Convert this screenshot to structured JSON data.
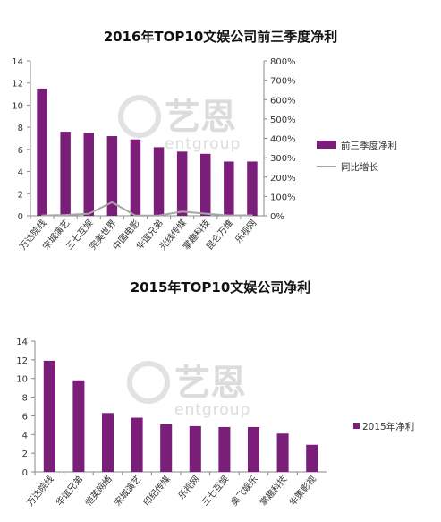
{
  "watermark": {
    "cn": "艺恩",
    "en": "entgroup"
  },
  "colors": {
    "bar": "#7B1E7A",
    "line": "#A6A6A6",
    "axis": "#888888"
  },
  "chart_data": [
    {
      "type": "bar",
      "title": "2016年TOP10文娱公司前三季度净利",
      "categories": [
        "万达院线",
        "宋城演艺",
        "三七互娱",
        "完美世界",
        "中国电影",
        "华谊兄弟",
        "光线传媒",
        "掌趣科技",
        "昆仑万维",
        "乐视网"
      ],
      "series": [
        {
          "name": "前三季度净利",
          "type": "bar",
          "axis": "left",
          "values": [
            11.5,
            7.6,
            7.5,
            7.2,
            6.9,
            6.2,
            5.8,
            5.6,
            4.9,
            4.9
          ]
        },
        {
          "name": "同比增长",
          "type": "line",
          "axis": "right",
          "values": [
            0.02,
            0.04,
            0.11,
            0.7,
            0.01,
            0.01,
            0.22,
            0.11,
            0.02,
            0.03
          ]
        }
      ],
      "ylim": [
        0,
        14
      ],
      "yticks": [
        "0",
        "2",
        "4",
        "6",
        "8",
        "10",
        "12",
        "14"
      ],
      "y2lim": [
        0,
        8
      ],
      "y2ticks": [
        "0%",
        "100%",
        "200%",
        "300%",
        "400%",
        "500%",
        "600%",
        "700%",
        "800%"
      ],
      "legend": "right"
    },
    {
      "type": "bar",
      "title": "2015年TOP10文娱公司净利",
      "categories": [
        "万达院线",
        "华谊兄弟",
        "恺英网络",
        "宋城演艺",
        "印纪传媒",
        "乐视网",
        "三七互娱",
        "奥飞娱乐",
        "掌趣科技",
        "华策影视"
      ],
      "series": [
        {
          "name": "2015年净利",
          "type": "bar",
          "values": [
            11.9,
            9.8,
            6.3,
            5.8,
            5.1,
            4.9,
            4.8,
            4.8,
            4.1,
            2.9
          ]
        }
      ],
      "ylim": [
        0,
        14
      ],
      "yticks": [
        "0",
        "2",
        "4",
        "6",
        "8",
        "10",
        "12",
        "14"
      ],
      "legend": "right"
    }
  ]
}
